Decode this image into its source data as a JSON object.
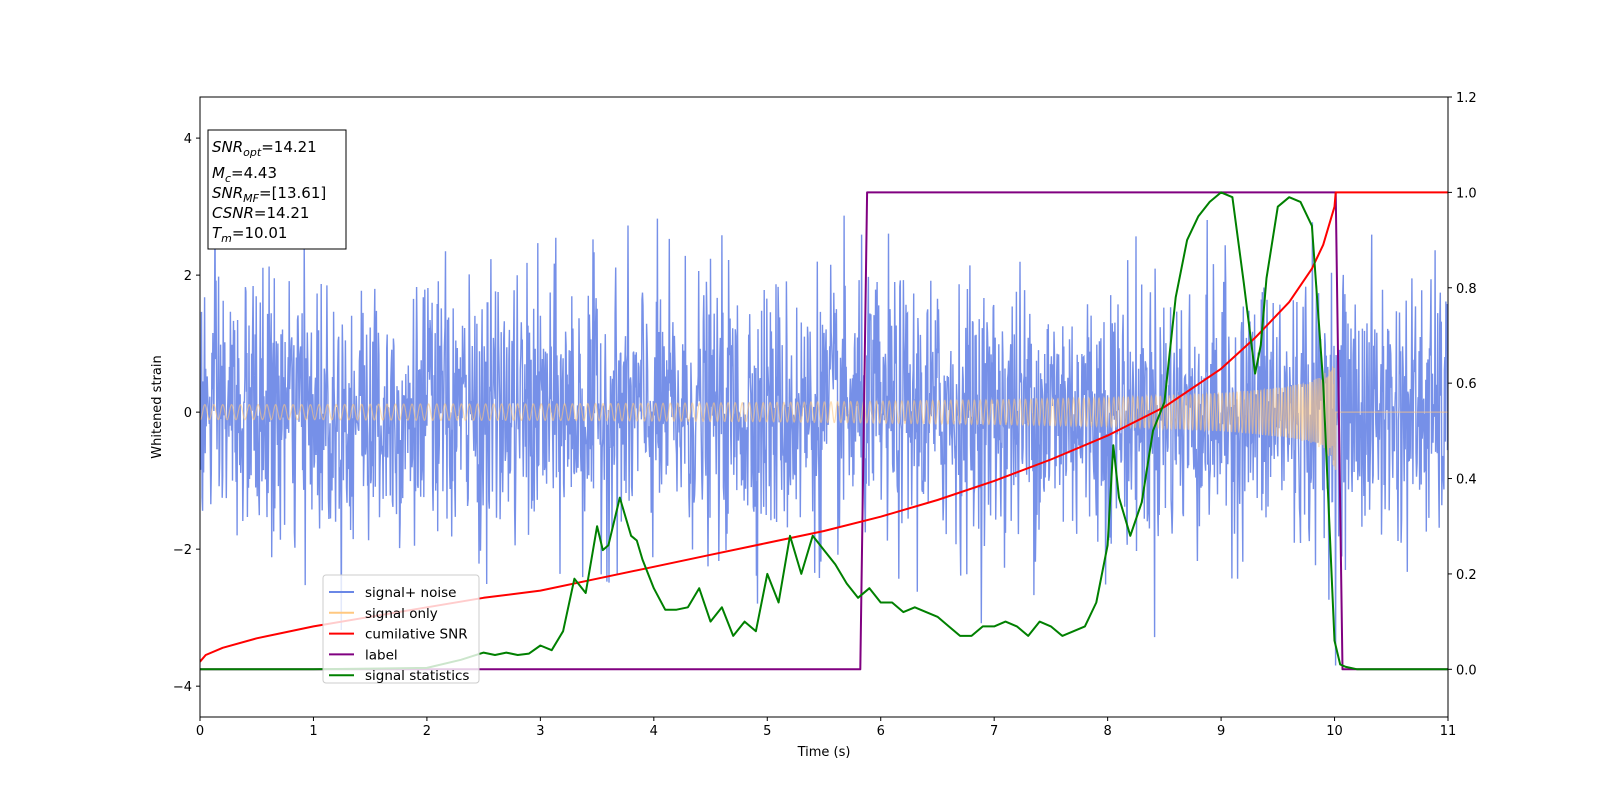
{
  "chart_data": {
    "type": "line",
    "xlabel": "Time (s)",
    "ylabel": "Whitened strain",
    "xlim": [
      0,
      11
    ],
    "ylim_left": [
      -4.45,
      4.6
    ],
    "ylim_right": [
      -0.1,
      1.2
    ],
    "x_ticks": [
      "0",
      "1",
      "2",
      "3",
      "4",
      "5",
      "6",
      "7",
      "8",
      "9",
      "10",
      "11"
    ],
    "y_ticks_left": [
      "−4",
      "−2",
      "0",
      "2",
      "4"
    ],
    "y_ticks_right": [
      "0.0",
      "0.2",
      "0.4",
      "0.6",
      "0.8",
      "1.0",
      "1.2"
    ],
    "grid": false,
    "legend_position": "lower-left",
    "info_box": [
      {
        "main": "SNR",
        "sub": "opt",
        "value": "=14.21"
      },
      {
        "main": "M",
        "sub": "c",
        "value": "=4.43"
      },
      {
        "main": "SNR",
        "sub": "MF",
        "value": "=[13.61]"
      },
      {
        "main": "CSNR",
        "sub": "",
        "value": "=14.21"
      },
      {
        "main": "T",
        "sub": "m",
        "value": "=10.01"
      }
    ],
    "series": [
      {
        "name": "signal+ noise",
        "axis": "left",
        "color": "#6a87e6",
        "noise_sigma": 0.95,
        "envelope_max_abs": 4.15,
        "samples_per_second": 220
      },
      {
        "name": "signal only",
        "axis": "left",
        "color": "#ffc880",
        "merger_time": 10.01,
        "envelope": {
          "x": [
            0,
            1,
            2,
            3,
            4,
            5,
            6,
            7,
            8,
            8.5,
            9,
            9.3,
            9.6,
            9.8,
            9.9,
            9.95,
            10.01,
            10.05,
            11
          ],
          "y": [
            0.11,
            0.11,
            0.12,
            0.12,
            0.13,
            0.14,
            0.16,
            0.18,
            0.21,
            0.24,
            0.28,
            0.32,
            0.38,
            0.45,
            0.55,
            0.65,
            0.85,
            0.0,
            0.0
          ]
        }
      },
      {
        "name": "cumilative SNR",
        "axis": "right",
        "color": "#ff0000",
        "x": [
          0,
          0.05,
          0.2,
          0.5,
          1,
          1.5,
          2,
          2.5,
          3,
          3.5,
          4,
          4.5,
          5,
          5.5,
          6,
          6.5,
          7,
          7.5,
          8,
          8.5,
          9,
          9.3,
          9.6,
          9.8,
          9.9,
          10.0,
          10.01,
          11
        ],
        "y": [
          0.016,
          0.03,
          0.045,
          0.065,
          0.09,
          0.11,
          0.13,
          0.15,
          0.165,
          0.19,
          0.215,
          0.24,
          0.265,
          0.29,
          0.32,
          0.355,
          0.395,
          0.44,
          0.49,
          0.55,
          0.63,
          0.695,
          0.77,
          0.84,
          0.89,
          0.97,
          1.0,
          1.0
        ]
      },
      {
        "name": "label",
        "axis": "right",
        "color": "#800080",
        "x": [
          0,
          5.82,
          5.88,
          10.01,
          10.07,
          11
        ],
        "y": [
          0.0,
          0.0,
          1.0,
          1.0,
          0.0,
          0.0
        ]
      },
      {
        "name": "signal statistics",
        "axis": "right",
        "color": "#008000",
        "x": [
          0,
          1,
          2,
          2.3,
          2.5,
          2.6,
          2.7,
          2.8,
          2.9,
          3.0,
          3.1,
          3.2,
          3.3,
          3.4,
          3.5,
          3.55,
          3.6,
          3.7,
          3.8,
          3.85,
          3.9,
          4.0,
          4.1,
          4.2,
          4.3,
          4.4,
          4.5,
          4.6,
          4.7,
          4.8,
          4.9,
          5.0,
          5.1,
          5.2,
          5.3,
          5.4,
          5.5,
          5.6,
          5.7,
          5.8,
          5.9,
          6.0,
          6.1,
          6.2,
          6.3,
          6.4,
          6.5,
          6.6,
          6.7,
          6.8,
          6.9,
          7.0,
          7.1,
          7.2,
          7.3,
          7.4,
          7.5,
          7.6,
          7.7,
          7.8,
          7.9,
          8.0,
          8.05,
          8.1,
          8.2,
          8.3,
          8.4,
          8.5,
          8.6,
          8.7,
          8.8,
          8.9,
          9.0,
          9.1,
          9.2,
          9.3,
          9.35,
          9.4,
          9.5,
          9.6,
          9.7,
          9.8,
          9.9,
          10.0,
          10.05,
          10.1,
          10.2,
          11
        ],
        "y": [
          0.0,
          0.0,
          0.003,
          0.02,
          0.035,
          0.03,
          0.035,
          0.03,
          0.033,
          0.05,
          0.04,
          0.08,
          0.19,
          0.16,
          0.3,
          0.25,
          0.26,
          0.36,
          0.28,
          0.27,
          0.23,
          0.17,
          0.125,
          0.125,
          0.13,
          0.17,
          0.1,
          0.13,
          0.07,
          0.1,
          0.08,
          0.2,
          0.14,
          0.28,
          0.2,
          0.28,
          0.25,
          0.22,
          0.18,
          0.15,
          0.17,
          0.14,
          0.14,
          0.12,
          0.13,
          0.12,
          0.11,
          0.09,
          0.07,
          0.07,
          0.09,
          0.09,
          0.1,
          0.09,
          0.07,
          0.1,
          0.09,
          0.07,
          0.08,
          0.09,
          0.14,
          0.26,
          0.47,
          0.36,
          0.28,
          0.35,
          0.5,
          0.56,
          0.78,
          0.9,
          0.95,
          0.98,
          1.0,
          0.99,
          0.81,
          0.62,
          0.68,
          0.82,
          0.97,
          0.99,
          0.98,
          0.93,
          0.6,
          0.06,
          0.01,
          0.005,
          0.0,
          0.0
        ]
      }
    ]
  }
}
